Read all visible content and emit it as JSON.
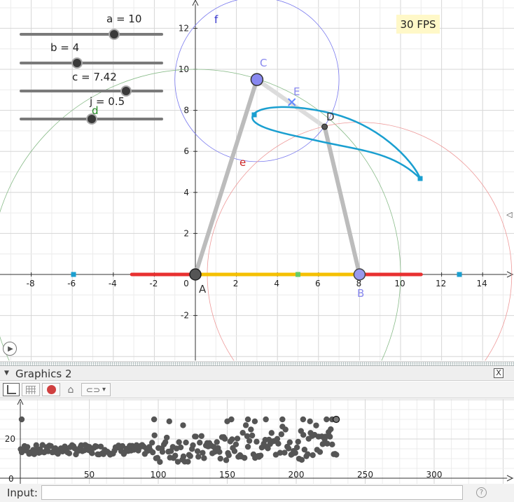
{
  "sliders": [
    {
      "label": "a = 10",
      "value": 10,
      "min": 0,
      "max": 10
    },
    {
      "label": "b = 4",
      "value": 4,
      "min": 0,
      "max": 10
    },
    {
      "label": "c = 7.42",
      "value": 7.42,
      "min": 0,
      "max": 10
    },
    {
      "label": "j = 0.5",
      "value": 0.5,
      "min": 0,
      "max": 1
    }
  ],
  "fps_label": "30 FPS",
  "graphics1": {
    "xticks": [
      "-8",
      "-6",
      "-4",
      "-2",
      "0",
      "2",
      "4",
      "6",
      "8",
      "10",
      "12",
      "14"
    ],
    "yticks": [
      "-2",
      "2",
      "4",
      "6",
      "8",
      "10",
      "12"
    ],
    "points": {
      "A": [
        0,
        0
      ],
      "B": [
        8,
        0
      ],
      "C": [
        3,
        9.5
      ],
      "D": [
        6.3,
        7.2
      ],
      "E": [
        4.7,
        8.4
      ]
    },
    "labels": {
      "A": "A",
      "B": "B",
      "C": "C",
      "D": "D",
      "E": "E",
      "d": "d",
      "e": "e",
      "f": "f"
    },
    "colors": {
      "circle_f": "#7777ee",
      "circle_d": "#88bb88",
      "circle_e": "#ee9999",
      "curve": "#1a9fd0",
      "red_seg": "#e83030",
      "yellow_seg": "#f5c000",
      "rods": "#bcbcbc"
    }
  },
  "graphics2": {
    "title": "Graphics 2",
    "close_label": "X",
    "toolbar_caret": "▾",
    "xticks": [
      "50",
      "100",
      "150",
      "200",
      "250",
      "300"
    ],
    "yticks": [
      "20"
    ],
    "origin_label": "0",
    "dot_color": "#555555"
  },
  "input": {
    "label": "Input:",
    "value": "",
    "help": "?"
  }
}
